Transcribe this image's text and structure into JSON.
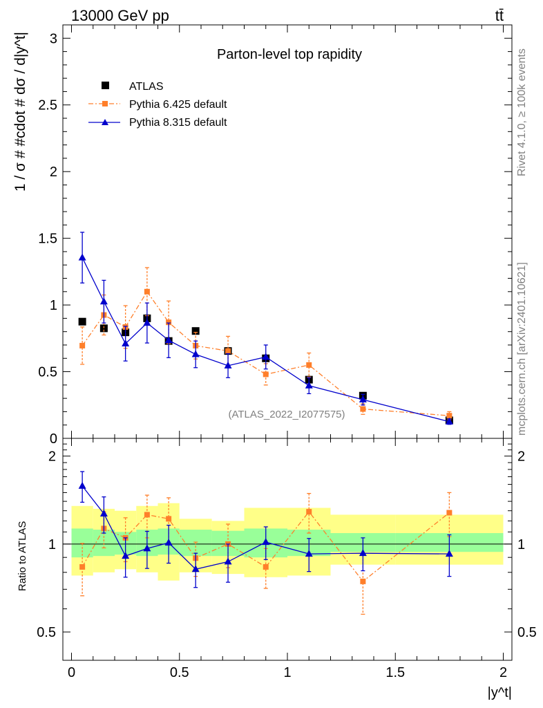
{
  "header": {
    "energy_label": "13000 GeV pp",
    "process_label": "tt̄"
  },
  "side_labels": {
    "rivet": "Rivet 4.1.0, ≥ 100k events",
    "mcplots": "mcplots.cern.ch [arXiv:2401.10621]"
  },
  "chart_data": [
    {
      "type": "line",
      "panel": "main",
      "title": "Parton-level top rapidity",
      "ylabel": "1 / σ # #cdot # dσ / d|y^t|",
      "xlabel": "",
      "watermark": "(ATLAS_2022_I2077575)",
      "xlim": [
        -0.04,
        2.04
      ],
      "ylim": [
        0,
        3.1
      ],
      "y_ticks": [
        0,
        0.5,
        1,
        1.5,
        2,
        2.5,
        3
      ],
      "y_tick_labels": [
        "0",
        "0.5",
        "1",
        "1.5",
        "2",
        "2.5",
        "3"
      ],
      "legend_position": "top-left",
      "bins": [
        [
          0,
          0.1
        ],
        [
          0.1,
          0.2
        ],
        [
          0.2,
          0.3
        ],
        [
          0.3,
          0.4
        ],
        [
          0.4,
          0.5
        ],
        [
          0.5,
          0.65
        ],
        [
          0.65,
          0.8
        ],
        [
          0.8,
          1.0
        ],
        [
          1.0,
          1.2
        ],
        [
          1.2,
          1.5
        ],
        [
          1.5,
          2.0
        ]
      ],
      "series": [
        {
          "name": "ATLAS",
          "style": "data",
          "color": "#000000",
          "x": [
            0.05,
            0.15,
            0.25,
            0.35,
            0.45,
            0.575,
            0.725,
            0.9,
            1.1,
            1.35,
            1.75
          ],
          "y": [
            0.875,
            0.825,
            0.795,
            0.9,
            0.73,
            0.805,
            0.655,
            0.6,
            0.44,
            0.32,
            0.135
          ]
        },
        {
          "name": "Pythia 6.425 default",
          "style": "dashdot-square",
          "color": "#ff7f2a",
          "x": [
            0.05,
            0.15,
            0.25,
            0.35,
            0.45,
            0.575,
            0.725,
            0.9,
            1.1,
            1.35,
            1.75
          ],
          "y": [
            0.695,
            0.925,
            0.835,
            1.1,
            0.87,
            0.695,
            0.655,
            0.48,
            0.55,
            0.22,
            0.17
          ],
          "err": [
            0.14,
            0.15,
            0.16,
            0.18,
            0.16,
            0.1,
            0.11,
            0.08,
            0.09,
            0.04,
            0.03
          ]
        },
        {
          "name": "Pythia 8.315 default",
          "style": "solid-triangle",
          "color": "#0000cc",
          "x": [
            0.05,
            0.15,
            0.25,
            0.35,
            0.45,
            0.575,
            0.725,
            0.9,
            1.1,
            1.35,
            1.75
          ],
          "y": [
            1.355,
            1.025,
            0.71,
            0.865,
            0.735,
            0.63,
            0.545,
            0.61,
            0.395,
            0.29,
            0.125
          ],
          "err": [
            0.19,
            0.16,
            0.13,
            0.15,
            0.13,
            0.1,
            0.09,
            0.09,
            0.06,
            0.04,
            0.02
          ]
        }
      ]
    },
    {
      "type": "line",
      "panel": "ratio",
      "title": "",
      "ylabel": "Ratio to ATLAS",
      "xlabel": "|y^t|",
      "xlim": [
        -0.04,
        2.04
      ],
      "ylim": [
        0.4,
        2.3
      ],
      "y_scale": "log",
      "y_ticks": [
        0.5,
        1,
        2
      ],
      "y_tick_labels": [
        "0.5",
        "1",
        "2"
      ],
      "x_ticks": [
        0,
        0.5,
        1,
        1.5,
        2
      ],
      "x_tick_labels": [
        "0",
        "0.5",
        "1",
        "1.5",
        "2"
      ],
      "bands": {
        "bins": [
          [
            0,
            0.1
          ],
          [
            0.1,
            0.2
          ],
          [
            0.2,
            0.3
          ],
          [
            0.3,
            0.4
          ],
          [
            0.4,
            0.5
          ],
          [
            0.5,
            0.65
          ],
          [
            0.65,
            0.8
          ],
          [
            0.8,
            1.0
          ],
          [
            1.0,
            1.2
          ],
          [
            1.2,
            1.5
          ],
          [
            1.5,
            2.0
          ]
        ],
        "inner_lo": [
          0.9,
          0.91,
          0.92,
          0.91,
          0.92,
          0.91,
          0.91,
          0.9,
          0.91,
          0.94,
          0.94
        ],
        "inner_hi": [
          1.13,
          1.12,
          1.1,
          1.12,
          1.13,
          1.12,
          1.11,
          1.13,
          1.12,
          1.09,
          1.09
        ],
        "outer_lo": [
          0.78,
          0.8,
          0.82,
          0.8,
          0.75,
          0.8,
          0.79,
          0.77,
          0.78,
          0.85,
          0.85
        ],
        "outer_hi": [
          1.35,
          1.32,
          1.3,
          1.35,
          1.38,
          1.22,
          1.2,
          1.33,
          1.33,
          1.26,
          1.26
        ],
        "inner_color": "#99ff99",
        "outer_color": "#ffff88"
      },
      "series": [
        {
          "name": "Pythia 6.425 default",
          "style": "dashdot-square",
          "color": "#ff7f2a",
          "x": [
            0.05,
            0.15,
            0.25,
            0.35,
            0.45,
            0.575,
            0.725,
            0.9,
            1.1,
            1.35,
            1.75
          ],
          "y": [
            0.835,
            1.13,
            1.05,
            1.26,
            1.22,
            0.895,
            1.0,
            0.835,
            1.29,
            0.745,
            1.28
          ],
          "err": [
            0.17,
            0.16,
            0.18,
            0.21,
            0.22,
            0.12,
            0.17,
            0.13,
            0.2,
            0.17,
            0.22
          ]
        },
        {
          "name": "Pythia 8.315 default",
          "style": "solid-triangle",
          "color": "#0000cc",
          "x": [
            0.05,
            0.15,
            0.25,
            0.35,
            0.45,
            0.575,
            0.725,
            0.9,
            1.1,
            1.35,
            1.75
          ],
          "y": [
            1.58,
            1.27,
            0.91,
            0.965,
            1.01,
            0.82,
            0.87,
            1.015,
            0.925,
            0.93,
            0.925
          ],
          "err": [
            0.19,
            0.18,
            0.14,
            0.14,
            0.15,
            0.11,
            0.13,
            0.13,
            0.12,
            0.12,
            0.15
          ]
        }
      ]
    }
  ]
}
